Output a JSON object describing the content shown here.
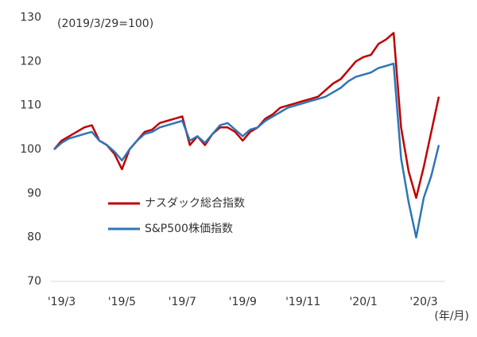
{
  "chart_data": {
    "type": "line",
    "annotation": "(2019/3/29=100)",
    "x_unit": "(年/月)",
    "categories": [
      null,
      "'19/3",
      null,
      null,
      null,
      null,
      null,
      null,
      null,
      "'19/5",
      null,
      null,
      null,
      null,
      null,
      null,
      null,
      "'19/7",
      null,
      null,
      null,
      null,
      null,
      null,
      null,
      "'19/9",
      null,
      null,
      null,
      null,
      null,
      null,
      null,
      "'19/11",
      null,
      null,
      null,
      null,
      null,
      null,
      null,
      "'20/1",
      null,
      null,
      null,
      null,
      null,
      null,
      null,
      "'20/3",
      null,
      null
    ],
    "series": [
      {
        "name": "ナスダック総合指数",
        "color": "#c00000",
        "values": [
          100,
          102,
          103,
          104,
          105,
          105.5,
          102,
          101,
          99,
          95.5,
          100,
          102,
          104,
          104.5,
          106,
          106.5,
          107,
          107.5,
          101,
          103,
          101,
          103.5,
          105,
          105,
          104,
          102,
          104,
          105,
          107,
          108,
          109.5,
          110,
          110.5,
          111,
          111.5,
          112,
          113.5,
          115,
          116,
          118,
          120,
          121,
          121.5,
          124,
          125,
          126.5,
          105,
          95,
          89,
          96,
          104,
          112
        ]
      },
      {
        "name": "S&P500株価指数",
        "color": "#2e75b6",
        "values": [
          100,
          101.5,
          102.5,
          103,
          103.5,
          104,
          102,
          101,
          99.5,
          97.5,
          100,
          102,
          103.5,
          104,
          105,
          105.5,
          106,
          106.5,
          102,
          103,
          101.5,
          103.5,
          105.5,
          106,
          104.5,
          103,
          104.5,
          105,
          106.5,
          107.5,
          108.5,
          109.5,
          110,
          110.5,
          111,
          111.5,
          112,
          113,
          114,
          115.5,
          116.5,
          117,
          117.5,
          118.5,
          119,
          119.5,
          98,
          88,
          80,
          89,
          94,
          101
        ]
      }
    ],
    "ylim": [
      70,
      130
    ],
    "yticks": [
      70,
      80,
      90,
      100,
      110,
      120,
      130
    ]
  }
}
